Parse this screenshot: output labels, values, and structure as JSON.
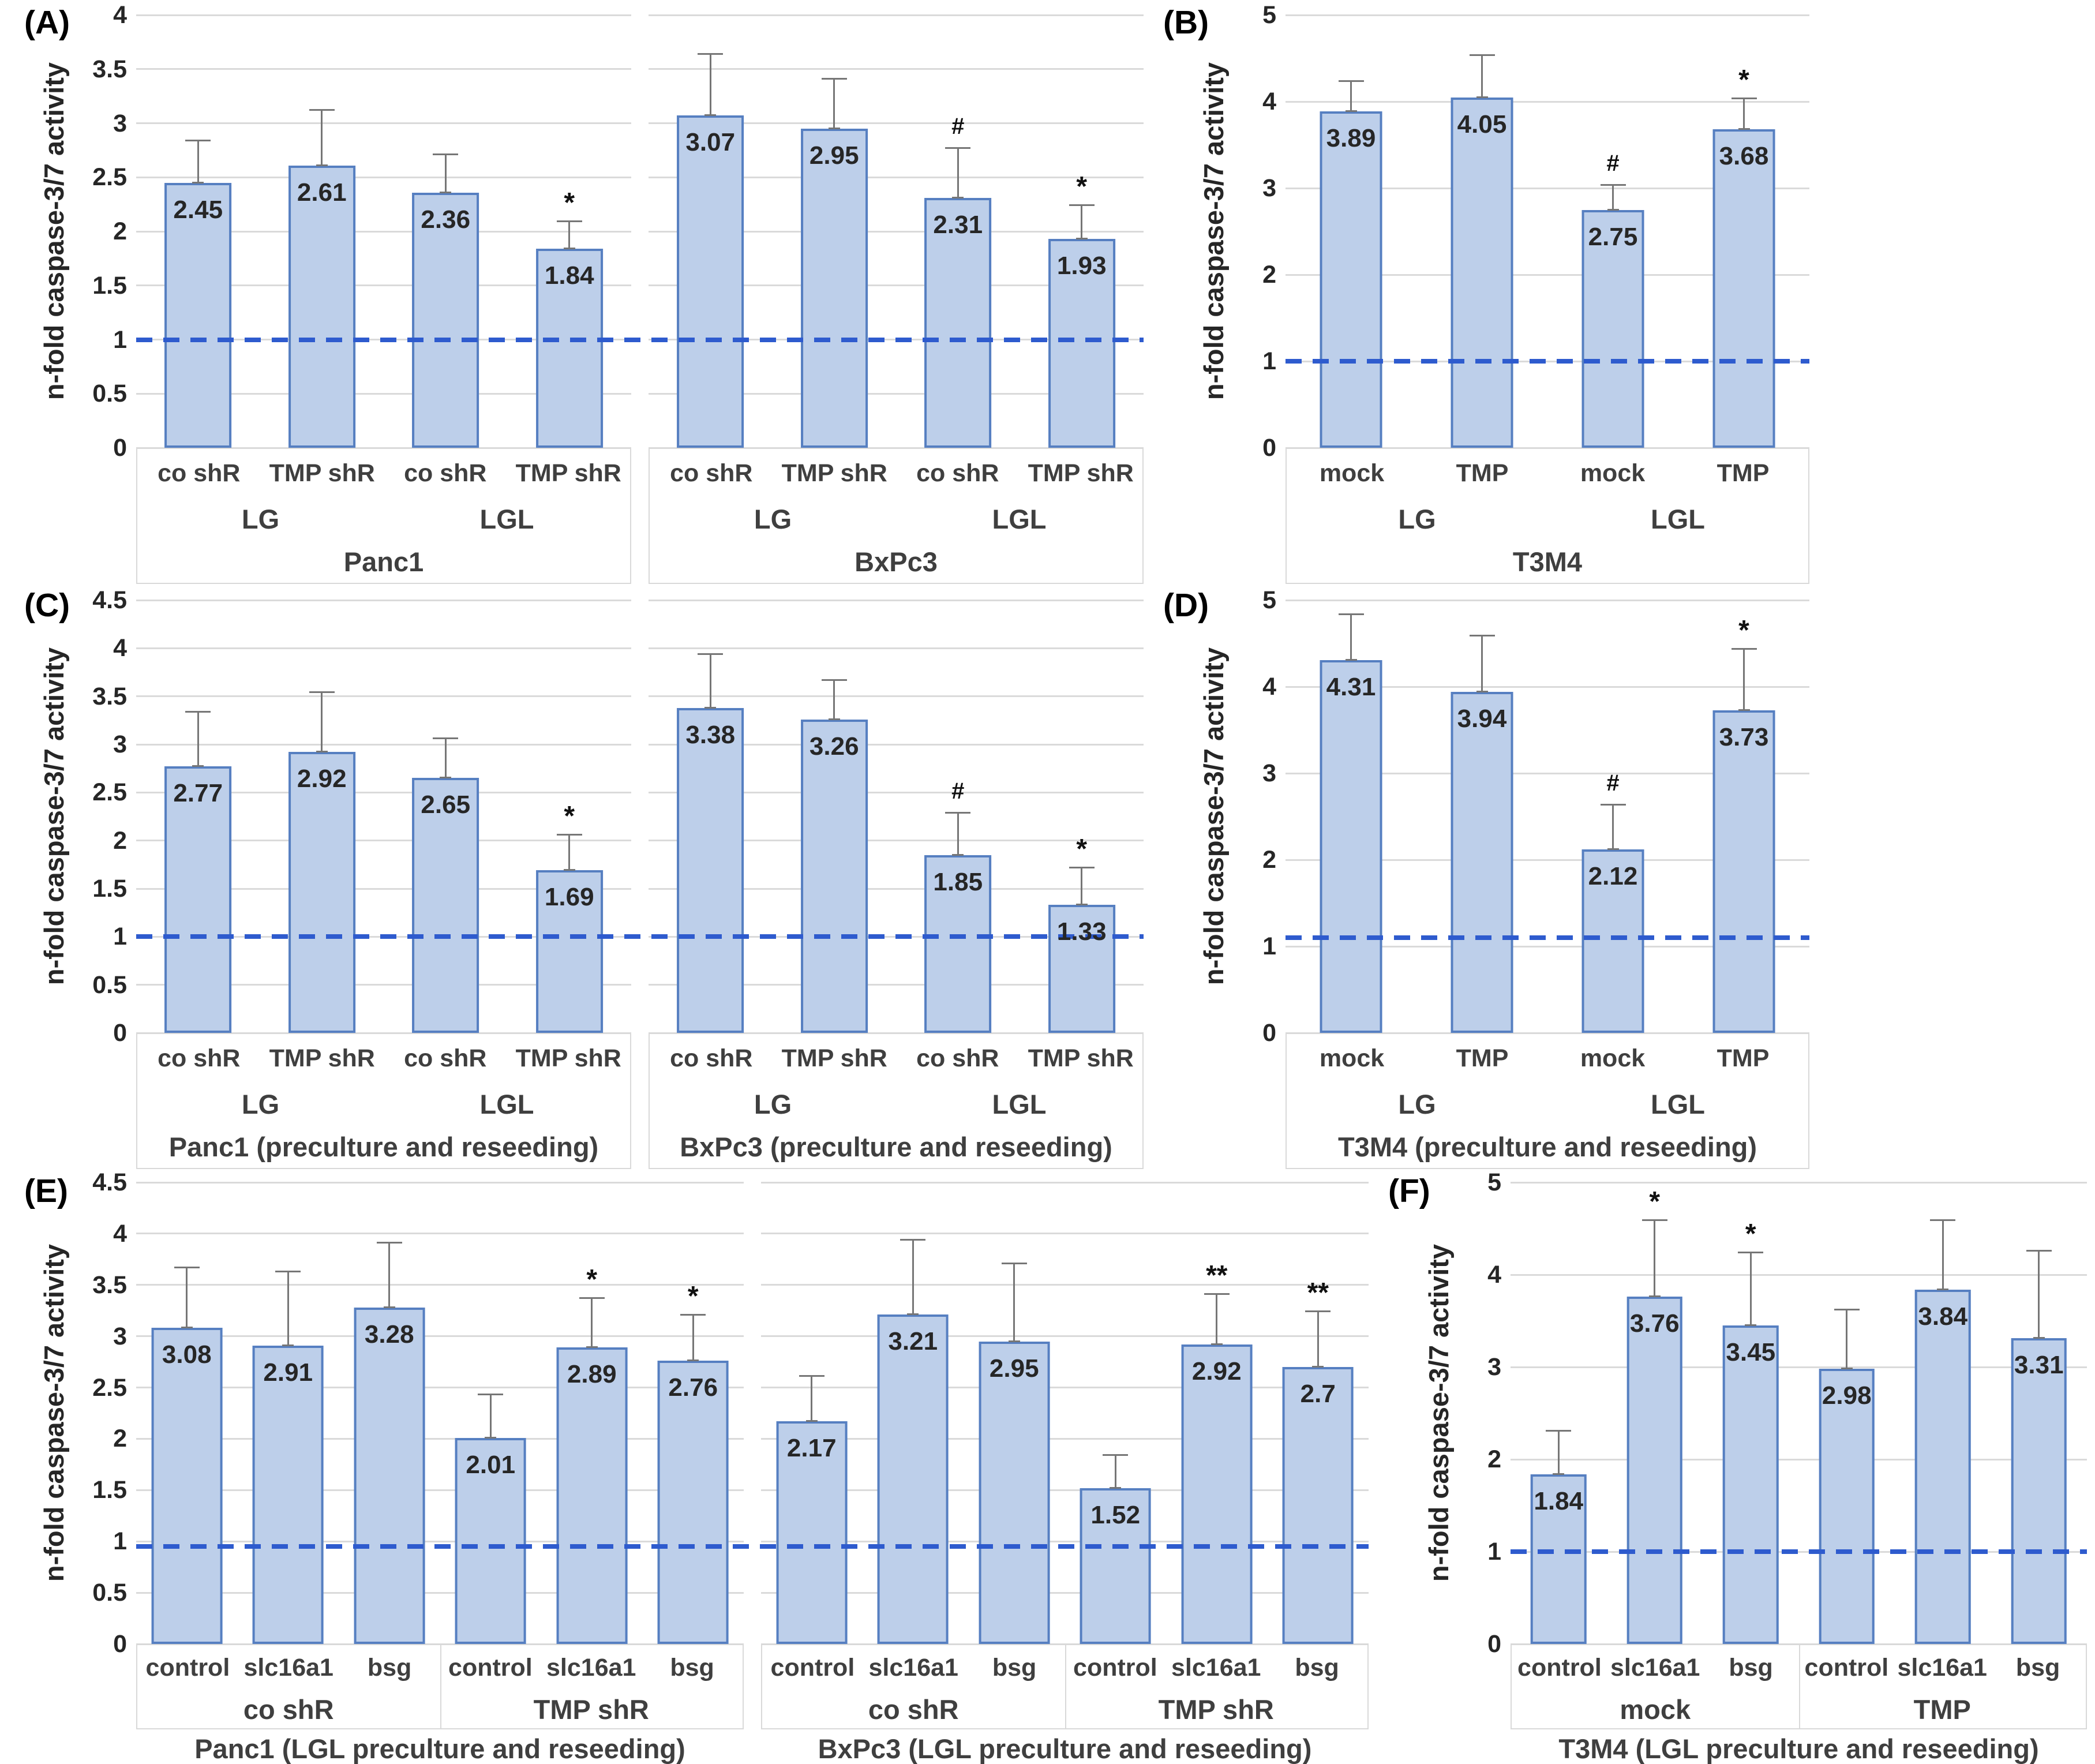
{
  "figure": {
    "ylabel": "n-fold caspase-3/7 activity",
    "colors": {
      "bar_fill": "#bdcfea",
      "bar_border": "#567fc1",
      "error_bar": "#767676",
      "refline": "#2e5bce",
      "gridline": "#dadada",
      "axis_box_border": "#d9d9d9",
      "text_dark": "#262626",
      "text_label": "#3f3f3f"
    }
  },
  "chart_data": [
    {
      "panel": "(A)",
      "type": "bar",
      "ymax": 4,
      "ystep": 0.5,
      "refline": 1.0,
      "bar_frac": 0.54,
      "ylabel": "n-fold caspase-3/7 activity",
      "grid": true,
      "legend": "none",
      "charts": [
        {
          "title": "Panc1",
          "categories": [
            "co shR",
            "TMP shR",
            "co shR",
            "TMP shR"
          ],
          "groups": [
            {
              "label": "LG",
              "span": 2
            },
            {
              "label": "LGL",
              "span": 2
            }
          ],
          "values": [
            2.45,
            2.61,
            2.36,
            1.84
          ],
          "value_labels": [
            "2.45",
            "2.61",
            "2.36",
            "1.84"
          ],
          "errors": [
            0.4,
            0.52,
            0.36,
            0.26
          ],
          "marks": [
            "",
            "",
            "",
            "*"
          ]
        },
        {
          "title": "BxPc3",
          "categories": [
            "co shR",
            "TMP shR",
            "co shR",
            "TMP shR"
          ],
          "groups": [
            {
              "label": "LG",
              "span": 2
            },
            {
              "label": "LGL",
              "span": 2
            }
          ],
          "values": [
            3.07,
            2.95,
            2.31,
            1.93
          ],
          "value_labels": [
            "3.07",
            "2.95",
            "2.31",
            "1.93"
          ],
          "errors": [
            0.58,
            0.47,
            0.47,
            0.32
          ],
          "marks": [
            "",
            "",
            "#",
            "*"
          ]
        }
      ]
    },
    {
      "panel": "(B)",
      "type": "bar",
      "ymax": 5,
      "ystep": 1,
      "refline": 1.0,
      "bar_frac": 0.48,
      "ylabel": "n-fold caspase-3/7 activity",
      "grid": true,
      "legend": "none",
      "charts": [
        {
          "title": "T3M4",
          "categories": [
            "mock",
            "TMP",
            "mock",
            "TMP"
          ],
          "groups": [
            {
              "label": "LG",
              "span": 2
            },
            {
              "label": "LGL",
              "span": 2
            }
          ],
          "values": [
            3.89,
            4.05,
            2.75,
            3.68
          ],
          "value_labels": [
            "3.89",
            "4.05",
            "2.75",
            "3.68"
          ],
          "errors": [
            0.36,
            0.5,
            0.3,
            0.37
          ],
          "marks": [
            "",
            "",
            "#",
            "*"
          ]
        }
      ]
    },
    {
      "panel": "(C)",
      "type": "bar",
      "ymax": 4.5,
      "ystep": 0.5,
      "refline": 1.0,
      "bar_frac": 0.54,
      "ylabel": "n-fold caspase-3/7 activity",
      "grid": true,
      "legend": "none",
      "charts": [
        {
          "title": "Panc1 (preculture and reseeding)",
          "categories": [
            "co shR",
            "TMP shR",
            "co shR",
            "TMP shR"
          ],
          "groups": [
            {
              "label": "LG",
              "span": 2
            },
            {
              "label": "LGL",
              "span": 2
            }
          ],
          "values": [
            2.77,
            2.92,
            2.65,
            1.69
          ],
          "value_labels": [
            "2.77",
            "2.92",
            "2.65",
            "1.69"
          ],
          "errors": [
            0.58,
            0.63,
            0.42,
            0.38
          ],
          "marks": [
            "",
            "",
            "",
            "*"
          ]
        },
        {
          "title": "BxPc3 (preculture and reseeding)",
          "categories": [
            "co shR",
            "TMP shR",
            "co shR",
            "TMP shR"
          ],
          "groups": [
            {
              "label": "LG",
              "span": 2
            },
            {
              "label": "LGL",
              "span": 2
            }
          ],
          "values": [
            3.38,
            3.26,
            1.85,
            1.33
          ],
          "value_labels": [
            "3.38",
            "3.26",
            "1.85",
            "1.33"
          ],
          "errors": [
            0.57,
            0.42,
            0.45,
            0.4
          ],
          "marks": [
            "",
            "",
            "#",
            "*"
          ]
        }
      ]
    },
    {
      "panel": "(D)",
      "type": "bar",
      "ymax": 5,
      "ystep": 1,
      "refline": 1.1,
      "bar_frac": 0.48,
      "ylabel": "n-fold caspase-3/7 activity",
      "grid": true,
      "legend": "none",
      "charts": [
        {
          "title": "T3M4 (preculture and reseeding)",
          "categories": [
            "mock",
            "TMP",
            "mock",
            "TMP"
          ],
          "groups": [
            {
              "label": "LG",
              "span": 2
            },
            {
              "label": "LGL",
              "span": 2
            }
          ],
          "values": [
            4.31,
            3.94,
            2.12,
            3.73
          ],
          "value_labels": [
            "4.31",
            "3.94",
            "2.12",
            "3.73"
          ],
          "errors": [
            0.54,
            0.66,
            0.53,
            0.72
          ],
          "marks": [
            "",
            "",
            "#",
            "*"
          ]
        }
      ]
    },
    {
      "panel": "(E)",
      "type": "bar",
      "ymax": 4.5,
      "ystep": 0.5,
      "refline": 0.95,
      "bar_frac": 0.7,
      "ylabel": "n-fold caspase-3/7 activity",
      "grid": true,
      "legend": "none",
      "charts": [
        {
          "title": "Panc1 (LGL preculture and reseeding)",
          "title_outside": true,
          "group_divider": true,
          "categories": [
            "control",
            "slc16a1",
            "bsg",
            "control",
            "slc16a1",
            "bsg"
          ],
          "groups": [
            {
              "label": "co shR",
              "span": 3
            },
            {
              "label": "TMP shR",
              "span": 3
            }
          ],
          "values": [
            3.08,
            2.91,
            3.28,
            2.01,
            2.89,
            2.76
          ],
          "value_labels": [
            "3.08",
            "2.91",
            "3.28",
            "2.01",
            "2.89",
            "2.76"
          ],
          "errors": [
            0.6,
            0.73,
            0.64,
            0.43,
            0.49,
            0.46
          ],
          "marks": [
            "",
            "",
            "",
            "",
            "*",
            "*"
          ]
        },
        {
          "title": "BxPc3 (LGL preculture and reseeding)",
          "title_outside": true,
          "group_divider": true,
          "categories": [
            "control",
            "slc16a1",
            "bsg",
            "control",
            "slc16a1",
            "bsg"
          ],
          "groups": [
            {
              "label": "co shR",
              "span": 3
            },
            {
              "label": "TMP shR",
              "span": 3
            }
          ],
          "values": [
            2.17,
            3.21,
            2.95,
            1.52,
            2.92,
            2.7
          ],
          "value_labels": [
            "2.17",
            "3.21",
            "2.95",
            "1.52",
            "2.92",
            "2.7"
          ],
          "errors": [
            0.45,
            0.74,
            0.77,
            0.33,
            0.5,
            0.55
          ],
          "marks": [
            "",
            "",
            "",
            "",
            "**",
            "**"
          ]
        }
      ]
    },
    {
      "panel": "(F)",
      "type": "bar",
      "ymax": 5,
      "ystep": 1,
      "refline": 1.0,
      "bar_frac": 0.58,
      "ylabel": "n-fold caspase-3/7 activity",
      "grid": true,
      "legend": "none",
      "charts": [
        {
          "title": "T3M4 (LGL preculture and reseeding)",
          "title_outside": true,
          "group_divider": true,
          "categories": [
            "control",
            "slc16a1",
            "bsg",
            "control",
            "slc16a1",
            "bsg"
          ],
          "groups": [
            {
              "label": "mock",
              "span": 3
            },
            {
              "label": "TMP",
              "span": 3
            }
          ],
          "values": [
            1.84,
            3.76,
            3.45,
            2.98,
            3.84,
            3.31
          ],
          "value_labels": [
            "1.84",
            "3.76",
            "3.45",
            "2.98",
            "3.84",
            "3.31"
          ],
          "errors": [
            0.48,
            0.84,
            0.8,
            0.65,
            0.76,
            0.96
          ],
          "marks": [
            "",
            "*",
            "*",
            "",
            "",
            ""
          ]
        }
      ]
    }
  ]
}
